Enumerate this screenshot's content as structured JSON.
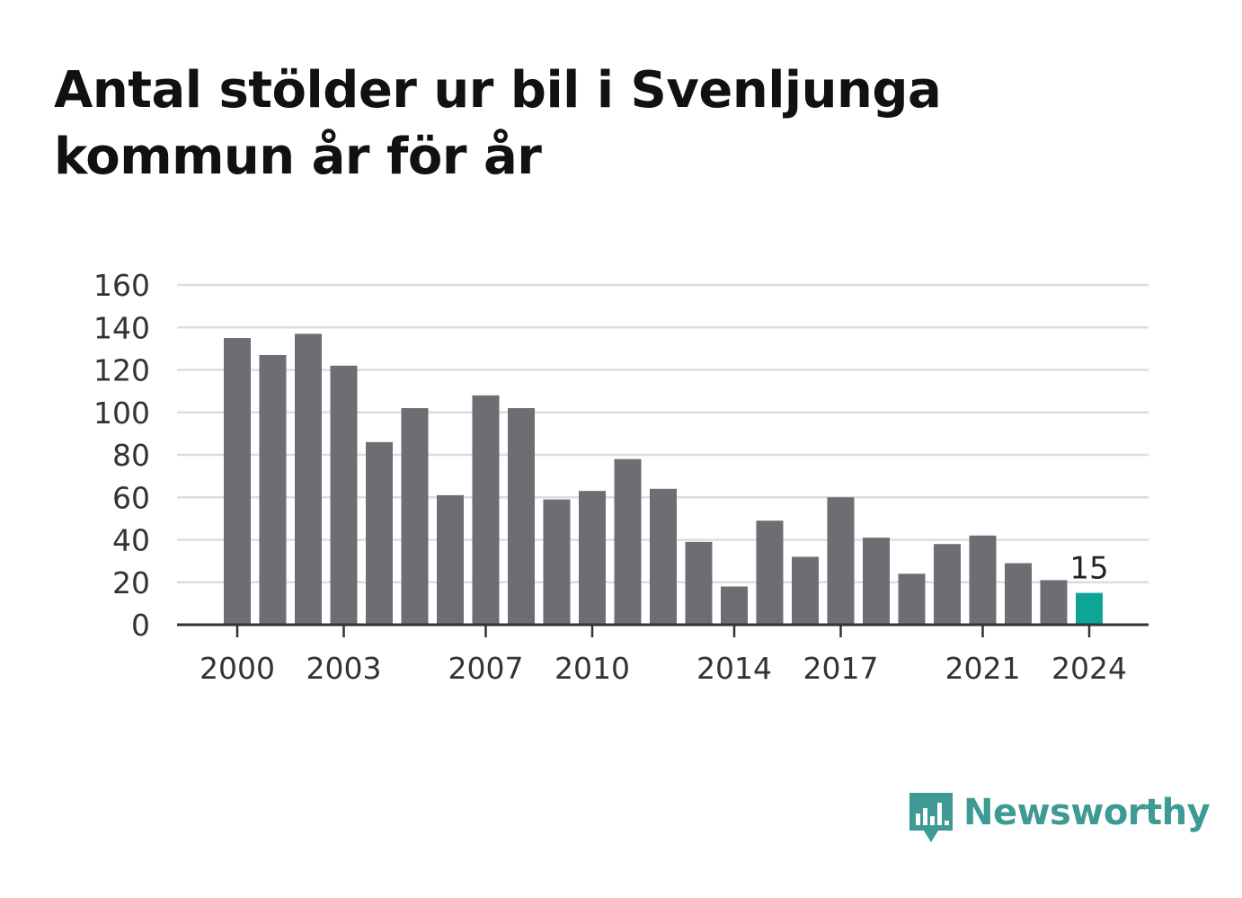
{
  "title": "Antal stölder ur bil i Svenljunga kommun år för år",
  "brand": {
    "name": "Newsworthy",
    "color": "#3d9a94",
    "icon": "speech-bubble-bar-chart-icon"
  },
  "colors": {
    "bar": "#6e6d73",
    "highlight": "#0ea597",
    "grid": "#dddddd",
    "axis": "#333333"
  },
  "chart_data": {
    "type": "bar",
    "title": "Antal stölder ur bil i Svenljunga kommun år för år",
    "xlabel": "",
    "ylabel": "",
    "categories": [
      2000,
      2001,
      2002,
      2003,
      2004,
      2005,
      2006,
      2007,
      2008,
      2009,
      2010,
      2011,
      2012,
      2013,
      2014,
      2015,
      2016,
      2017,
      2018,
      2019,
      2020,
      2021,
      2022,
      2023,
      2024
    ],
    "values": [
      135,
      127,
      137,
      122,
      86,
      102,
      61,
      108,
      102,
      59,
      63,
      78,
      64,
      39,
      18,
      49,
      32,
      60,
      41,
      24,
      38,
      42,
      29,
      21,
      15
    ],
    "ylim": [
      0,
      160
    ],
    "yticks": [
      0,
      20,
      40,
      60,
      80,
      100,
      120,
      140,
      160
    ],
    "xtick_labels": [
      2000,
      2003,
      2007,
      2010,
      2014,
      2017,
      2021,
      2024
    ],
    "highlight": {
      "category": 2024,
      "label": "15"
    },
    "grid": true
  }
}
